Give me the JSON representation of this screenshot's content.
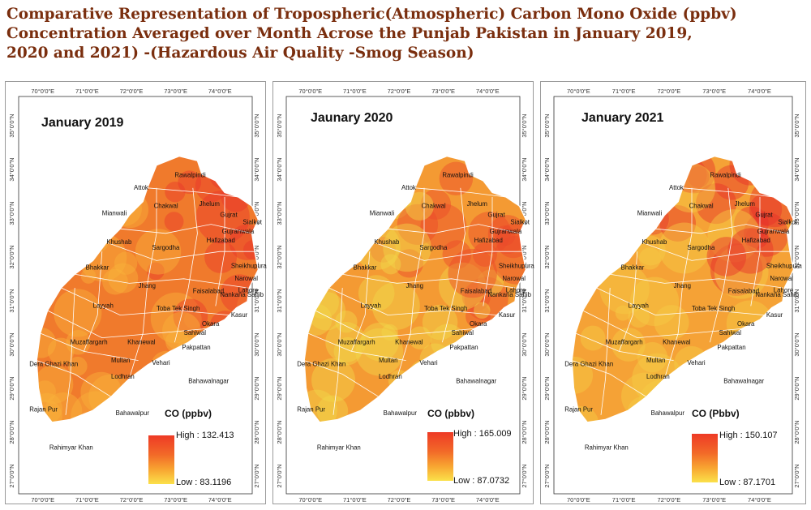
{
  "title": {
    "line1": "Comparative Representation of Tropospheric(Atmospheric) Carbon Mono Oxide (ppbv)",
    "line2": "Concentration Averaged over Month Acrose the Punjab Pakistan in January 2019,",
    "line3": "2020 and 2021) -(Hazardous Air Quality -Smog Season)"
  },
  "panels": [
    {
      "year_label": "January 2019",
      "legend_title": "CO (ppbv)",
      "high": "High : 132.413",
      "low": "Low : 83.1196",
      "colors": {
        "base": "#f07a2c",
        "hot": "#e8382a",
        "cool": "#f8b23a"
      }
    },
    {
      "year_label": "Jaunary  2020",
      "legend_title": "CO (pbbv)",
      "high": "High : 165.009",
      "low": "Low : 87.0732",
      "colors": {
        "base": "#f49a33",
        "hot": "#ea4a2b",
        "cool": "#f1d64a"
      }
    },
    {
      "year_label": "January 2021",
      "legend_title": "CO (Pbbv)",
      "high": "High : 150.107",
      "low": "Low : 87.1701",
      "colors": {
        "base": "#f5a236",
        "hot": "#e6302a",
        "cool": "#f6cc45"
      }
    }
  ],
  "longitude_ticks": [
    "70°0'0\"E",
    "71°0'0\"E",
    "72°0'0\"E",
    "73°0'0\"E",
    "74°0'0\"E"
  ],
  "latitude_ticks": [
    "35°0'0\"N",
    "34°0'0\"N",
    "33°0'0\"N",
    "32°0'0\"N",
    "31°0'0\"N",
    "30°0'0\"N",
    "29°0'0\"N",
    "28°0'0\"N",
    "27°0'0\"N"
  ],
  "districts": [
    "Attok",
    "Rawalpindi",
    "Chakwal",
    "Jhelum",
    "Mianwali",
    "Gujrat",
    "Sialkot",
    "Gujranwala",
    "Khushab",
    "Sargodha",
    "Hafizabad",
    "Sheikhupura",
    "Bhakkar",
    "Jhang",
    "Narowal",
    "Lahore",
    "Faisalabad",
    "Nankana Sahib",
    "Layyah",
    "Toba Tek Singh",
    "Kasur",
    "Okara",
    "Sahiwal",
    "Muzaffargarh",
    "Khanewal",
    "Pakpattan",
    "Dera Ghazi Khan",
    "Multan",
    "Vehari",
    "Lodhran",
    "Bahawalnagar",
    "Rajan Pur",
    "Bahawalpur",
    "Rahimyar Khan"
  ]
}
